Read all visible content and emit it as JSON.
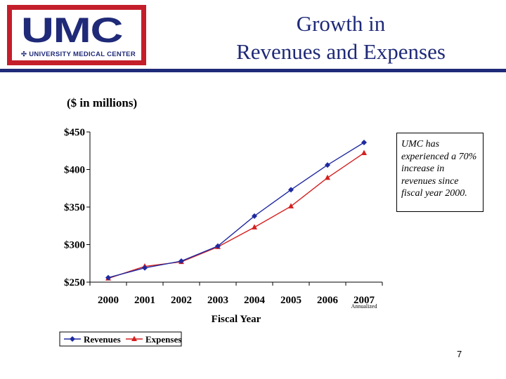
{
  "logo": {
    "text": "UMC",
    "subtitle": "✣ UNIVERSITY MEDICAL CENTER"
  },
  "title": {
    "line1": "Growth in",
    "line2": "Revenues and Expenses"
  },
  "subtitle": "($ in millions)",
  "annotation": "UMC has experienced a 70% increase in revenues since fiscal year 2000.",
  "page_number": "7",
  "colors": {
    "brand_blue": "#1f2a78",
    "brand_red": "#c41e2a",
    "revenues": "#1f2aa0",
    "expenses": "#d41f1f"
  },
  "chart_data": {
    "type": "line",
    "xlabel": "Fiscal Year",
    "ylabel": "",
    "categories": [
      "2000",
      "2001",
      "2002",
      "2003",
      "2004",
      "2005",
      "2006",
      "2007"
    ],
    "category_note": {
      "category": "2007",
      "text": "Annualized"
    },
    "yticks": [
      "$450",
      "$400",
      "$350",
      "$300",
      "$250"
    ],
    "ylim": [
      250,
      450
    ],
    "grid": false,
    "legend_position": "bottom-left",
    "series": [
      {
        "name": "Revenues",
        "marker": "diamond",
        "values": [
          256,
          269,
          278,
          298,
          338,
          373,
          406,
          436
        ]
      },
      {
        "name": "Expenses",
        "marker": "triangle",
        "values": [
          255,
          271,
          277,
          297,
          323,
          351,
          389,
          422
        ]
      }
    ]
  }
}
